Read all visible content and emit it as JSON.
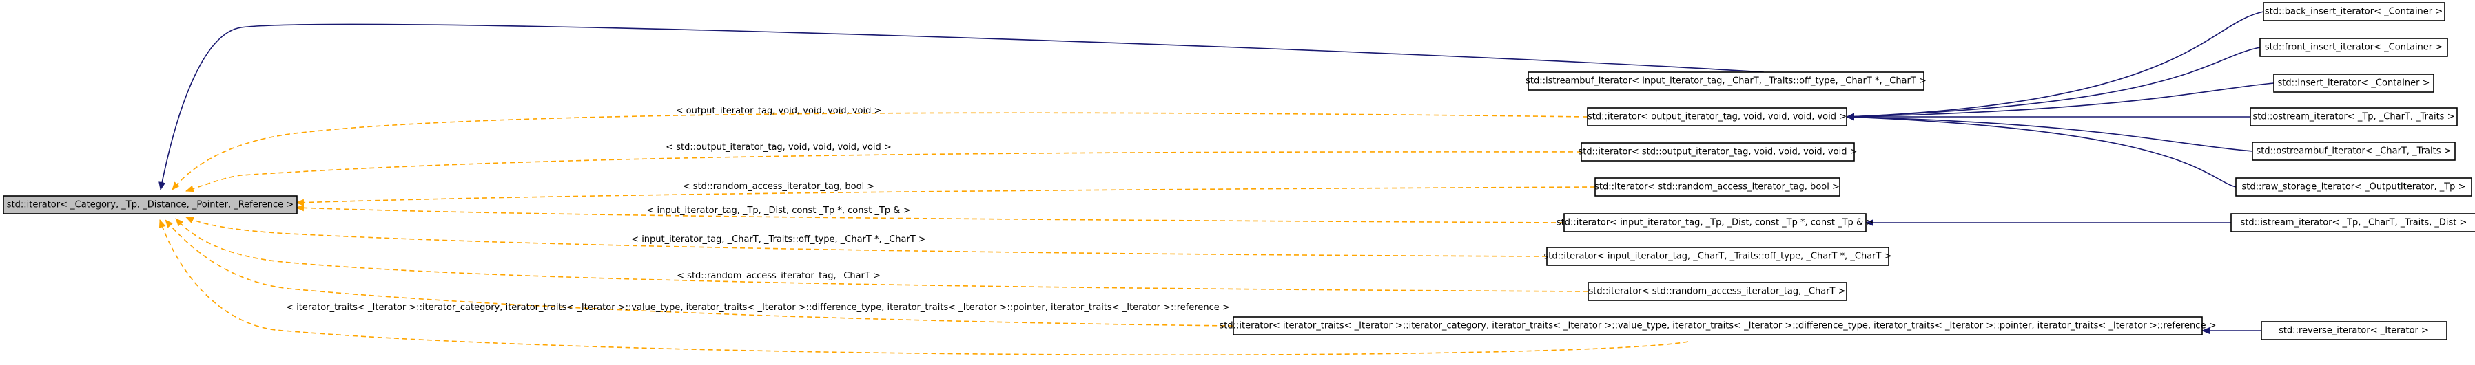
{
  "nodes": {
    "root": "std::iterator< _Category, _Tp, _Distance, _Pointer, _Reference >",
    "istreambuf_iterator": "std::istreambuf_iterator< input_iterator_tag, _CharT, _Traits::off_type, _CharT *, _CharT >",
    "output_iter": "std::iterator< output_iterator_tag, void, void, void, void >",
    "std_output_iter": "std::iterator< std::output_iterator_tag, void, void, void, void >",
    "std_random_bool": "std::iterator< std::random_access_iterator_tag, bool >",
    "input_iter_tp": "std::iterator< input_iterator_tag, _Tp, _Dist, const _Tp *, const _Tp & >",
    "input_iter_chart": "std::iterator< input_iterator_tag, _CharT, _Traits::off_type, _CharT *, _CharT >",
    "std_random_chart": "std::iterator< std::random_access_iterator_tag, _CharT >",
    "iter_traits": "std::iterator< iterator_traits< _Iterator >::iterator_category, iterator_traits< _Iterator >::value_type, iterator_traits< _Iterator >::difference_type, iterator_traits< _Iterator >::pointer, iterator_traits< _Iterator >::reference >",
    "back_insert": "std::back_insert_iterator< _Container >",
    "front_insert": "std::front_insert_iterator< _Container >",
    "insert": "std::insert_iterator< _Container >",
    "ostream": "std::ostream_iterator< _Tp, _CharT, _Traits >",
    "ostreambuf": "std::ostreambuf_iterator< _CharT, _Traits >",
    "raw_storage": "std::raw_storage_iterator< _OutputIterator, _Tp >",
    "istream": "std::istream_iterator< _Tp, _CharT, _Traits, _Dist >",
    "reverse": "std::reverse_iterator< _Iterator >"
  },
  "edge_labels": {
    "output": "< output_iterator_tag, void, void, void, void >",
    "std_output": "< std::output_iterator_tag, void, void, void, void >",
    "std_random_bool": "< std::random_access_iterator_tag, bool >",
    "input_tp": "< input_iterator_tag, _Tp, _Dist, const _Tp *, const _Tp & >",
    "input_chart": "< input_iterator_tag, _CharT, _Traits::off_type, _CharT *, _CharT >",
    "std_random_chart": "< std::random_access_iterator_tag, _CharT >",
    "iter_traits": "< iterator_traits< _Iterator >::iterator_category, iterator_traits< _Iterator >::value_type, iterator_traits< _Iterator >::difference_type, iterator_traits< _Iterator >::pointer, iterator_traits< _Iterator >::reference >"
  },
  "colors": {
    "inheritance_edge": "#191970",
    "template_edge": "#ffa500",
    "root_fill": "#bfbfbf"
  }
}
